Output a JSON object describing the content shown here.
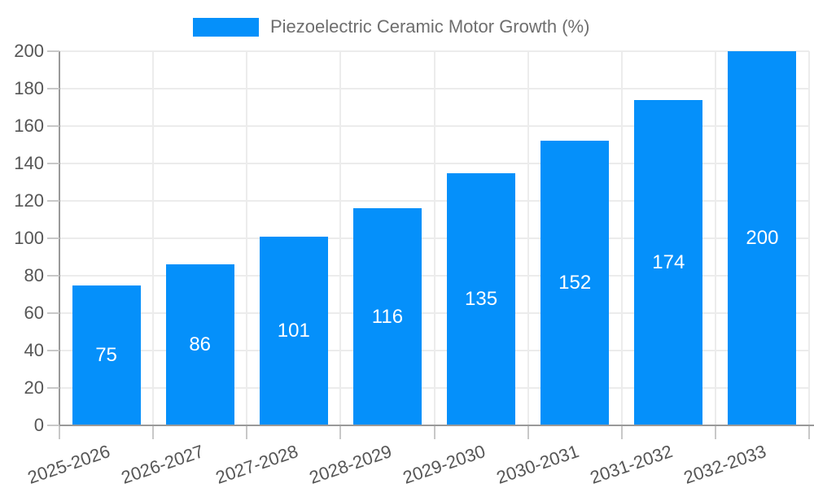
{
  "chart_data": {
    "type": "bar",
    "title": "Piezoelectric Ceramic Motor Growth (%)",
    "legend": {
      "position": "top",
      "label": "Piezoelectric Ceramic Motor Growth (%)"
    },
    "categories": [
      "2025-2026",
      "2026-2027",
      "2027-2028",
      "2028-2029",
      "2029-2030",
      "2030-2031",
      "2031-2032",
      "2032-2033"
    ],
    "series": [
      {
        "name": "Piezoelectric Ceramic Motor Growth (%)",
        "values": [
          75,
          86,
          101,
          116,
          135,
          152,
          174,
          200
        ]
      }
    ],
    "xlabel": "",
    "ylabel": "",
    "ylim": [
      0,
      200
    ],
    "ytick_step": 20,
    "ytick_labels": [
      "0",
      "20",
      "40",
      "60",
      "80",
      "100",
      "120",
      "140",
      "160",
      "180",
      "200"
    ],
    "grid": true,
    "value_labels_shown": true,
    "style": {
      "bar_color": "#0590FA",
      "value_label_color": "#ffffff",
      "axis_color": "#999999",
      "grid_color": "#ececec",
      "tick_color": "#c8c8c8",
      "tick_label_color": "#565656",
      "legend_text_color": "#6e6e6e",
      "background": "#ffffff"
    }
  }
}
